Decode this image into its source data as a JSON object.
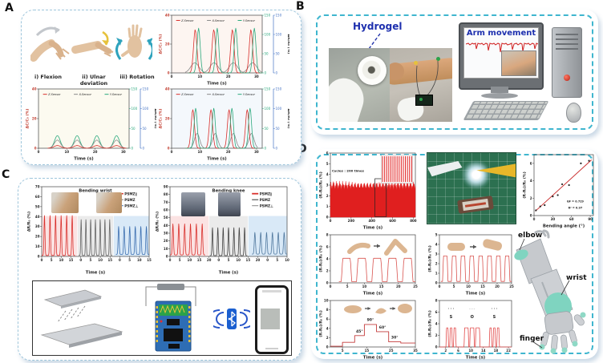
{
  "panel_labels": {
    "a": "A",
    "b": "B",
    "c": "C",
    "d": "D"
  },
  "panel_a": {
    "gesture_labels": [
      "i) Flexion",
      "ii) Ulnar deviation",
      "iii) Rotation"
    ]
  },
  "panel_b": {
    "hydrogel_label": "Hydrogel",
    "screen_title": "Arm movement"
  },
  "panel_d": {
    "arm_labels": {
      "elbow": "elbow",
      "wrist": "wrist",
      "finger": "finger"
    }
  },
  "colors": {
    "z_sensor": "#d9302c",
    "x_sensor": "#8a8a8a",
    "y_sensor": "#2aa87c",
    "right_axis_green": "#2aa87c",
    "right_axis_blue": "#4472c4",
    "dashed_border": "#3fb6cf",
    "teal_patch": "#7fd4c0"
  },
  "chart_data": [
    {
      "id": "a1",
      "type": "line",
      "x_range": [
        0,
        32
      ],
      "y_range": [
        0,
        40
      ],
      "x_ticks": [
        0,
        10,
        20,
        30
      ],
      "y_ticks": [
        0,
        20,
        40
      ],
      "x_label": "Time (s)",
      "y_label": "ΔC/C₀ (%)",
      "y_label_color": "#c0392b",
      "y_tick_color": "#c0392b",
      "right_axes": [
        {
          "color": "#2aa87c",
          "ticks": [
            0,
            50,
            100,
            150
          ]
        },
        {
          "color": "#4472c4",
          "ticks": [
            0,
            50,
            100,
            150
          ]
        }
      ],
      "right_label": "ΔR/R₀ (%)",
      "plot_bg": "#fdf5f1",
      "legend": {
        "dir": "h",
        "pos": [
          0.05,
          0.09
        ],
        "step": 0.34,
        "fs": 3.5,
        "italic": true,
        "line": 5,
        "items": [
          {
            "label": "Z-Sensor",
            "color": "#d9302c"
          },
          {
            "label": "X-Sensor",
            "color": "#8a8a8a"
          },
          {
            "label": "Y-Sensor",
            "color": "#2aa87c"
          }
        ]
      },
      "series": [
        {
          "name": "X-Sensor",
          "color": "#8a8a8a",
          "type": "peaks",
          "n": 4,
          "amp": 7,
          "w": 0.3,
          "zone": [
            0.15,
            1
          ]
        },
        {
          "name": "Z-Sensor",
          "color": "#d9302c",
          "type": "peaks",
          "n": 4,
          "amp": 30,
          "w": 0.13,
          "shift": -0.7,
          "zone": [
            0.18,
            1
          ]
        },
        {
          "name": "Y-Sensor",
          "color": "#2aa87c",
          "type": "peaks",
          "n": 4,
          "amp": 31,
          "w": 0.12,
          "shift": 0.5,
          "zone": [
            0.18,
            1
          ]
        }
      ]
    },
    {
      "id": "a2",
      "type": "line",
      "x_range": [
        0,
        32
      ],
      "y_range": [
        0,
        40
      ],
      "x_ticks": [
        0,
        10,
        20,
        30
      ],
      "y_ticks": [
        0,
        20,
        40
      ],
      "x_label": "Time (s)",
      "y_label": "ΔC/C₀ (%)",
      "y_label_color": "#c0392b",
      "y_tick_color": "#c0392b",
      "right_axes": [
        {
          "color": "#2aa87c",
          "ticks": [
            0,
            50,
            100,
            150
          ]
        },
        {
          "color": "#4472c4",
          "ticks": [
            0,
            50,
            100,
            150
          ]
        }
      ],
      "right_label": "ΔR/R₀ (%)",
      "plot_bg": "#fcfaf0",
      "legend": {
        "dir": "h",
        "pos": [
          0.05,
          0.09
        ],
        "step": 0.34,
        "fs": 3.5,
        "italic": true,
        "line": 5,
        "items": [
          {
            "label": "Z-Sensor",
            "color": "#d9302c"
          },
          {
            "label": "X-Sensor",
            "color": "#8a8a8a"
          },
          {
            "label": "Y-Sensor",
            "color": "#2aa87c"
          }
        ]
      },
      "series": [
        {
          "name": "Y-Sensor",
          "color": "#2aa87c",
          "type": "peaks",
          "n": 4,
          "amp": 8.5,
          "w": 0.2,
          "zone": [
            0.1,
            0.97
          ]
        },
        {
          "name": "X-Sensor",
          "color": "#8a8a8a",
          "type": "peaks",
          "n": 4,
          "amp": 5.5,
          "w": 0.22,
          "zone": [
            0.1,
            0.97
          ]
        },
        {
          "name": "Z-Sensor",
          "color": "#d9302c",
          "type": "peaks",
          "n": 4,
          "amp": 1.8,
          "w": 0.25,
          "zone": [
            0.1,
            0.97
          ]
        }
      ]
    },
    {
      "id": "a3",
      "type": "line",
      "x_range": [
        0,
        32
      ],
      "y_range": [
        0,
        40
      ],
      "x_ticks": [
        0,
        10,
        20,
        30
      ],
      "y_ticks": [
        0,
        20,
        40
      ],
      "x_label": "Time (s)",
      "y_label": "ΔC/C₀ (%)",
      "y_label_color": "#c0392b",
      "y_tick_color": "#c0392b",
      "right_axes": [
        {
          "color": "#2aa87c",
          "ticks": [
            0,
            50,
            100,
            150
          ]
        },
        {
          "color": "#4472c4",
          "ticks": [
            0,
            50,
            100,
            150
          ]
        }
      ],
      "right_label": "ΔR/R₀ (%)",
      "plot_bg": "#f4f8fc",
      "legend": {
        "dir": "h",
        "pos": [
          0.05,
          0.09
        ],
        "step": 0.34,
        "fs": 3.5,
        "italic": true,
        "line": 5,
        "items": [
          {
            "label": "Z-Sensor",
            "color": "#d9302c"
          },
          {
            "label": "X-Sensor",
            "color": "#8a8a8a"
          },
          {
            "label": "Y-Sensor",
            "color": "#2aa87c"
          }
        ]
      },
      "series": [
        {
          "name": "X-Sensor",
          "color": "#8a8a8a",
          "type": "peaks",
          "n": 4,
          "amp": 10,
          "w": 0.2,
          "shift": 1.0,
          "zone": [
            0.15,
            0.95
          ]
        },
        {
          "name": "Z-Sensor",
          "color": "#d9302c",
          "type": "peaks",
          "n": 4,
          "amp": 26,
          "w": 0.13,
          "shift": -0.5,
          "zone": [
            0.15,
            0.95
          ]
        },
        {
          "name": "Y-Sensor",
          "color": "#2aa87c",
          "type": "peaks",
          "n": 4,
          "amp": 27,
          "w": 0.12,
          "shift": 0.5,
          "zone": [
            0.15,
            0.95
          ]
        }
      ]
    },
    {
      "id": "c_wrist",
      "type": "line",
      "title": "Bending wrist",
      "x_range": [
        0,
        45
      ],
      "y_range": [
        0,
        70
      ],
      "x_tick_labels": [
        "0",
        "5",
        "10",
        "15",
        "0",
        "5",
        "10",
        "15",
        "0",
        "5",
        "10",
        "15"
      ],
      "y_ticks": [
        0,
        10,
        20,
        30,
        40,
        50,
        60,
        70
      ],
      "x_label": "Time (s)",
      "y_label": "ΔR/R₀ (%)",
      "bg_zones": [
        {
          "f0": 0,
          "f1": 0.33,
          "fy0": 0.42,
          "color": "#fbe3e3"
        },
        {
          "f0": 0.335,
          "f1": 0.665,
          "fy0": 0.42,
          "color": "#ebebeb"
        },
        {
          "f0": 0.67,
          "f1": 1,
          "fy0": 0.42,
          "color": "#d9e9f7"
        }
      ],
      "legend": {
        "dir": "v",
        "pos": [
          0.7,
          0.1
        ],
        "row": 7.5,
        "fs": 4.2,
        "bold": true,
        "line": 8,
        "items": [
          {
            "label": "PSMZ∥",
            "color": "#d9302c",
            "lw": 1.6
          },
          {
            "label": "PSMZ",
            "color": "#777777",
            "lw": 1
          },
          {
            "label": "PSMZ⊥",
            "color": "#3c6fb0",
            "lw": 1
          }
        ]
      },
      "series": [
        {
          "name": "PSMZ∥",
          "color": "#d9302c",
          "type": "peaks",
          "n": 6,
          "amp": 40,
          "base": 1,
          "w": 0.12,
          "zone": [
            0.0,
            0.31
          ]
        },
        {
          "name": "PSMZ",
          "color": "#666666",
          "type": "peaks",
          "n": 7,
          "amp": 36,
          "base": 1,
          "w": 0.12,
          "zone": [
            0.345,
            0.655
          ]
        },
        {
          "name": "PSMZ⊥",
          "color": "#3c6fb0",
          "type": "peaks",
          "n": 6,
          "amp": 28,
          "base": 2,
          "w": 0.13,
          "zone": [
            0.69,
            1
          ]
        }
      ]
    },
    {
      "id": "c_knee",
      "type": "line",
      "title": "Bending knee",
      "x_range": [
        0,
        50
      ],
      "y_range": [
        0,
        90
      ],
      "x_tick_labels": [
        "0",
        "5",
        "10",
        "15",
        "20",
        "0",
        "5",
        "10",
        "15",
        "20",
        "0",
        "5",
        "10"
      ],
      "y_ticks": [
        0,
        10,
        20,
        30,
        40,
        50,
        60,
        70,
        80,
        90
      ],
      "x_label": "Time (s)",
      "y_label": "ΔR/R₀ (%)",
      "bg_zones": [
        {
          "f0": 0,
          "f1": 0.33,
          "fy0": 0.42,
          "color": "#fbe3e3"
        },
        {
          "f0": 0.335,
          "f1": 0.665,
          "fy0": 0.42,
          "color": "#ebebeb"
        },
        {
          "f0": 0.67,
          "f1": 1,
          "fy0": 0.42,
          "color": "#d9e9f7"
        }
      ],
      "legend": {
        "dir": "v",
        "pos": [
          0.7,
          0.1
        ],
        "row": 7.5,
        "fs": 4.2,
        "bold": true,
        "line": 8,
        "items": [
          {
            "label": "PSMZ∥",
            "color": "#d9302c",
            "lw": 1.8
          },
          {
            "label": "PSMZ",
            "color": "#333333",
            "lw": 1
          },
          {
            "label": "PSMZ⊥",
            "color": "#888888",
            "lw": 1
          }
        ]
      },
      "series": [
        {
          "name": "PSMZ∥",
          "color": "#d9302c",
          "type": "peaks",
          "n": 6,
          "amp": 40,
          "base": 2,
          "w": 0.13,
          "zone": [
            0.0,
            0.3
          ]
        },
        {
          "name": "PSMZ",
          "color": "#444444",
          "type": "peaks",
          "n": 7,
          "amp": 36,
          "base": 1,
          "w": 0.12,
          "zone": [
            0.34,
            0.66
          ]
        },
        {
          "name": "PSMZ⊥",
          "color": "#50789e",
          "type": "peaks",
          "n": 6,
          "amp": 28,
          "base": 3,
          "w": 0.14,
          "zone": [
            0.7,
            1
          ]
        }
      ]
    },
    {
      "id": "d_cycle",
      "type": "area",
      "x_range": [
        0,
        820
      ],
      "y_range": [
        0,
        6
      ],
      "x_ticks": [
        0,
        200,
        400,
        600,
        800
      ],
      "y_ticks": [
        0,
        1,
        2,
        3,
        4,
        5,
        6
      ],
      "x_label": "Time (s)",
      "y_label": "(R-R₀)/R₀ (%)",
      "series": [
        {
          "type": "band",
          "color": "#e01f1f",
          "top": 2.95,
          "jitter": 0.16
        }
      ],
      "shapes": [
        {
          "type": "rect",
          "x0": 430,
          "x1": 540,
          "y0": 0.05,
          "y1": 3.6,
          "stroke": "#222"
        },
        {
          "type": "frect",
          "f": [
            0.6,
            0.03,
            0.37,
            0.44
          ],
          "stripes": 15,
          "color": "#e01f1f",
          "stroke": "#aaaaaa"
        }
      ],
      "annotations": [
        {
          "text": "Cycles : 200 times",
          "x": 170,
          "y": 4.25,
          "size": 3.9,
          "bold": true
        }
      ]
    },
    {
      "id": "d_scatter",
      "type": "scatter",
      "x_range": [
        0,
        95
      ],
      "y_range": [
        0,
        7
      ],
      "x_ticks": [
        0,
        30,
        60,
        90
      ],
      "y_ticks": [
        0,
        2,
        4,
        6
      ],
      "x_label": "Bending angle (°)",
      "y_label": "(R-R₀)/R₀ (%)",
      "series": [
        {
          "type": "line",
          "color": "#c92a2a",
          "lw": 0.9,
          "xy": [
            [
              2,
              0.5
            ],
            [
              92,
              6.4
            ]
          ]
        },
        {
          "type": "scatter",
          "color": "#222222",
          "r": 1.1,
          "points": [
            [
              3,
              0.6
            ],
            [
              10,
              1.05
            ],
            [
              17,
              1.2
            ],
            [
              30,
              2.2
            ],
            [
              38,
              2.35
            ],
            [
              45,
              3.6
            ],
            [
              56,
              3.5
            ],
            [
              75,
              6.0
            ],
            [
              88,
              6.3
            ]
          ]
        }
      ],
      "annotations": [
        {
          "text": "GF = 0.729",
          "x": 66,
          "y": 1.5,
          "size": 3.4,
          "bold": true
        },
        {
          "text": "R² = 0.97",
          "x": 66,
          "y": 0.8,
          "size": 3.4,
          "bold": true
        }
      ]
    },
    {
      "id": "d_elbow",
      "type": "line",
      "x_range": [
        0,
        25
      ],
      "y_range": [
        0,
        8
      ],
      "x_ticks": [
        0,
        5,
        10,
        15,
        20,
        25
      ],
      "y_ticks": [
        0,
        2,
        4,
        6,
        8
      ],
      "x_label": "Time (s)",
      "y_label": "(R-R₀)/R₀ (%)",
      "series": [
        {
          "type": "pulse",
          "color": "#d9534f",
          "n": 5,
          "amp": 3.9,
          "base": 0.2,
          "hw": 0.34,
          "zone": [
            0.1,
            1
          ]
        }
      ]
    },
    {
      "id": "d_wrist",
      "type": "line",
      "x_range": [
        0,
        25
      ],
      "y_range": [
        0,
        5
      ],
      "x_ticks": [
        0,
        5,
        10,
        15,
        20,
        25
      ],
      "y_ticks": [
        0,
        1,
        2,
        3,
        4,
        5
      ],
      "x_label": "Time (s)",
      "y_label": "(R-R₀)/R₀ (%)",
      "series": [
        {
          "type": "pulse",
          "color": "#d9534f",
          "n": 8,
          "amp": 2.65,
          "base": 0.15,
          "hw": 0.3,
          "zone": [
            0.02,
            1
          ]
        }
      ]
    },
    {
      "id": "d_angle",
      "type": "line",
      "x_range": [
        0,
        35
      ],
      "y_range": [
        0,
        10
      ],
      "x_ticks": [
        5,
        15,
        25,
        35
      ],
      "y_ticks": [
        0,
        2,
        4,
        6,
        8,
        10
      ],
      "x_label": "Time (s)",
      "y_label": "(R-R₀)/R₀ (%)",
      "series": [
        {
          "type": "line",
          "color": "#c43c3c",
          "lw": 0.9,
          "xy": [
            [
              0,
              0.15
            ],
            [
              5,
              0.15
            ],
            [
              5,
              1.0
            ],
            [
              10,
              1.0
            ],
            [
              10,
              2.45
            ],
            [
              14,
              2.45
            ],
            [
              14,
              4.85
            ],
            [
              19,
              4.85
            ],
            [
              19,
              3.3
            ],
            [
              24,
              3.3
            ],
            [
              24,
              1.1
            ],
            [
              29,
              1.1
            ],
            [
              29,
              0.85
            ],
            [
              35,
              0.85
            ]
          ]
        }
      ],
      "annotations": [
        {
          "text": "45°",
          "x": 12,
          "y": 3.1,
          "size": 4.6,
          "bold": true
        },
        {
          "text": "90°",
          "x": 16.5,
          "y": 5.6,
          "size": 4.6,
          "bold": true
        },
        {
          "text": "60°",
          "x": 21.5,
          "y": 4.0,
          "size": 4.6,
          "bold": true
        },
        {
          "text": "30°",
          "x": 26.5,
          "y": 1.8,
          "size": 4.6,
          "bold": true
        }
      ]
    },
    {
      "id": "d_sos",
      "type": "line",
      "x_range": [
        0,
        23
      ],
      "y_range": [
        0,
        8
      ],
      "x_ticks": [
        2,
        6,
        10,
        14,
        18,
        22
      ],
      "y_ticks": [
        0,
        2,
        4,
        6,
        8
      ],
      "x_label": "Time (s)",
      "y_label": "(R-R₀)/R₀ (%)",
      "series": [
        {
          "type": "pulse_set",
          "color": "#e24a4a",
          "amp": 3.3,
          "groups": [
            {
              "centers": [
                2.5,
                3.7,
                4.9
              ],
              "hw": 0.42
            },
            {
              "centers": [
                8.6,
                10.4,
                12.2
              ],
              "hw": 0.75
            },
            {
              "centers": [
                16.3,
                17.5,
                18.7
              ],
              "hw": 0.42
            }
          ]
        }
      ],
      "annotations": [
        {
          "text": "• • •",
          "x": 3.7,
          "y": 6.4,
          "size": 3.4,
          "color": "#555555"
        },
        {
          "text": "– – –",
          "x": 10.4,
          "y": 6.4,
          "size": 3.4,
          "color": "#555555"
        },
        {
          "text": "• • •",
          "x": 17.5,
          "y": 6.4,
          "size": 3.4,
          "color": "#555555"
        },
        {
          "text": "S",
          "x": 3.7,
          "y": 5.0,
          "size": 5,
          "bold": true
        },
        {
          "text": "O",
          "x": 10.4,
          "y": 5.0,
          "size": 5,
          "bold": true
        },
        {
          "text": "S",
          "x": 17.5,
          "y": 5.0,
          "size": 5,
          "bold": true
        }
      ]
    }
  ]
}
